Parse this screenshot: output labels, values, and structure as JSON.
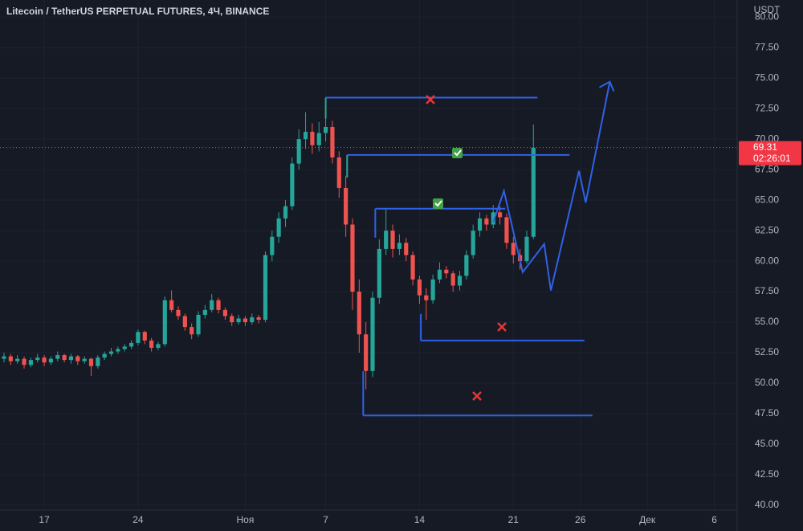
{
  "chart_data": {
    "type": "candlestick",
    "title": "Litecoin / TetherUS PERPETUAL FUTURES, 4Ч, BINANCE",
    "y_axis_label": "USDT",
    "up_color": "#26a69a",
    "down_color": "#ef5350",
    "drawing_color": "#2f62e8",
    "grid": true,
    "xlim": [
      -3.3,
      51.7
    ],
    "ylim": [
      39.6,
      81.4
    ],
    "xticks": [
      {
        "value": 0,
        "label": "17"
      },
      {
        "value": 7,
        "label": "24"
      },
      {
        "value": 15,
        "label": "Ноя"
      },
      {
        "value": 21,
        "label": "7"
      },
      {
        "value": 28,
        "label": "14"
      },
      {
        "value": 35,
        "label": "21"
      },
      {
        "value": 40,
        "label": "26"
      },
      {
        "value": 45,
        "label": "Дек"
      },
      {
        "value": 50,
        "label": "6"
      }
    ],
    "yticks": [
      {
        "value": 40,
        "label": "40.00"
      },
      {
        "value": 42.5,
        "label": "42.50"
      },
      {
        "value": 45,
        "label": "45.00"
      },
      {
        "value": 47.5,
        "label": "47.50"
      },
      {
        "value": 50,
        "label": "50.00"
      },
      {
        "value": 52.5,
        "label": "52.50"
      },
      {
        "value": 55,
        "label": "55.00"
      },
      {
        "value": 57.5,
        "label": "57.50"
      },
      {
        "value": 60,
        "label": "60.00"
      },
      {
        "value": 62.5,
        "label": "62.50"
      },
      {
        "value": 65,
        "label": "65.00"
      },
      {
        "value": 67.5,
        "label": "67.50"
      },
      {
        "value": 70,
        "label": "70.00"
      },
      {
        "value": 72.5,
        "label": "72.50"
      },
      {
        "value": 75,
        "label": "75.00"
      },
      {
        "value": 77.5,
        "label": "77.50"
      },
      {
        "value": 80,
        "label": "80.00"
      }
    ],
    "x": [
      -3,
      -2.5,
      -2,
      -1.5,
      -1,
      -0.5,
      0,
      0.5,
      1,
      1.5,
      2,
      2.5,
      3,
      3.5,
      4,
      4.5,
      5,
      5.5,
      6,
      6.5,
      7,
      7.5,
      8,
      8.5,
      9,
      9.5,
      10,
      10.5,
      11,
      11.5,
      12,
      12.5,
      13,
      13.5,
      14,
      14.5,
      15,
      15.5,
      16,
      16.5,
      17,
      17.5,
      18,
      18.5,
      19,
      19.5,
      20,
      20.5,
      21,
      21.5,
      22,
      22.5,
      23,
      23.5,
      24,
      24.5,
      25,
      25.5,
      26,
      26.5,
      27,
      27.5,
      28,
      28.5,
      29,
      29.5,
      30,
      30.5,
      31,
      31.5,
      32,
      32.5,
      33,
      33.5,
      34,
      34.5,
      35,
      35.5,
      36,
      36.5
    ],
    "ohlc": [
      [
        52.0,
        52.5,
        51.7,
        52.2
      ],
      [
        52.2,
        52.4,
        51.5,
        51.8
      ],
      [
        51.8,
        52.3,
        51.6,
        52.0
      ],
      [
        52.0,
        52.2,
        51.2,
        51.5
      ],
      [
        51.5,
        52.1,
        51.3,
        51.9
      ],
      [
        51.9,
        52.4,
        51.7,
        52.1
      ],
      [
        52.1,
        52.3,
        51.4,
        51.7
      ],
      [
        51.7,
        52.2,
        51.5,
        52.0
      ],
      [
        52.0,
        52.6,
        51.8,
        52.3
      ],
      [
        52.3,
        52.4,
        51.7,
        51.9
      ],
      [
        51.9,
        52.4,
        51.6,
        52.2
      ],
      [
        52.2,
        52.3,
        51.5,
        51.8
      ],
      [
        51.8,
        52.2,
        51.6,
        52.0
      ],
      [
        52.0,
        52.1,
        50.6,
        51.4
      ],
      [
        51.4,
        52.3,
        51.2,
        52.1
      ],
      [
        52.1,
        52.6,
        51.9,
        52.4
      ],
      [
        52.4,
        52.9,
        52.2,
        52.6
      ],
      [
        52.6,
        53.0,
        52.4,
        52.8
      ],
      [
        52.8,
        53.2,
        52.6,
        53.0
      ],
      [
        53.0,
        53.5,
        52.8,
        53.3
      ],
      [
        53.3,
        54.4,
        53.1,
        54.2
      ],
      [
        54.2,
        54.3,
        53.2,
        53.5
      ],
      [
        53.5,
        53.7,
        52.6,
        52.9
      ],
      [
        52.9,
        53.4,
        52.7,
        53.2
      ],
      [
        53.2,
        57.1,
        53.0,
        56.8
      ],
      [
        56.8,
        57.6,
        55.8,
        56.0
      ],
      [
        56.0,
        56.3,
        55.2,
        55.5
      ],
      [
        55.5,
        55.7,
        54.3,
        54.6
      ],
      [
        54.6,
        54.9,
        53.6,
        54.0
      ],
      [
        54.0,
        55.9,
        53.8,
        55.6
      ],
      [
        55.6,
        56.4,
        55.3,
        56.0
      ],
      [
        56.0,
        57.3,
        55.8,
        56.8
      ],
      [
        56.8,
        57.0,
        55.7,
        56.0
      ],
      [
        56.0,
        56.2,
        55.2,
        55.5
      ],
      [
        55.5,
        55.7,
        54.7,
        55.0
      ],
      [
        55.0,
        55.6,
        54.8,
        55.3
      ],
      [
        55.3,
        55.5,
        54.7,
        55.0
      ],
      [
        55.0,
        55.7,
        54.8,
        55.4
      ],
      [
        55.4,
        55.6,
        54.9,
        55.2
      ],
      [
        55.2,
        60.8,
        55.0,
        60.5
      ],
      [
        60.5,
        62.5,
        60.0,
        62.0
      ],
      [
        62.0,
        64.0,
        61.5,
        63.5
      ],
      [
        63.5,
        65.0,
        62.8,
        64.5
      ],
      [
        64.5,
        68.5,
        64.2,
        68.0
      ],
      [
        68.0,
        70.8,
        67.5,
        70.0
      ],
      [
        70.0,
        72.2,
        69.2,
        70.6
      ],
      [
        70.6,
        71.3,
        68.8,
        69.5
      ],
      [
        69.5,
        71.4,
        69.0,
        70.5
      ],
      [
        70.5,
        73.4,
        69.8,
        71.0
      ],
      [
        71.0,
        71.5,
        68.0,
        68.5
      ],
      [
        68.5,
        69.0,
        65.2,
        66.0
      ],
      [
        66.0,
        67.0,
        62.0,
        63.0
      ],
      [
        63.0,
        63.5,
        56.0,
        57.5
      ],
      [
        57.5,
        58.5,
        52.5,
        54.0
      ],
      [
        54.0,
        55.0,
        49.5,
        51.0
      ],
      [
        51.0,
        57.5,
        50.5,
        57.0
      ],
      [
        57.0,
        61.8,
        56.5,
        61.0
      ],
      [
        61.0,
        64.3,
        60.5,
        62.5
      ],
      [
        62.5,
        63.0,
        60.3,
        61.0
      ],
      [
        61.0,
        62.2,
        60.5,
        61.5
      ],
      [
        61.5,
        61.9,
        60.0,
        60.5
      ],
      [
        60.5,
        60.8,
        58.0,
        58.5
      ],
      [
        58.5,
        58.8,
        56.5,
        57.2
      ],
      [
        57.2,
        57.8,
        55.2,
        56.8
      ],
      [
        56.8,
        58.9,
        56.5,
        58.5
      ],
      [
        58.5,
        59.9,
        58.2,
        59.3
      ],
      [
        59.3,
        59.6,
        58.6,
        59.0
      ],
      [
        59.0,
        59.2,
        57.5,
        58.0
      ],
      [
        58.0,
        59.2,
        57.6,
        58.8
      ],
      [
        58.8,
        60.9,
        58.5,
        60.5
      ],
      [
        60.5,
        63.0,
        60.2,
        62.5
      ],
      [
        62.5,
        64.0,
        62.0,
        63.5
      ],
      [
        63.5,
        63.8,
        62.5,
        63.0
      ],
      [
        63.0,
        64.6,
        62.7,
        64.0
      ],
      [
        64.0,
        64.5,
        63.0,
        63.6
      ],
      [
        63.6,
        63.9,
        61.0,
        61.5
      ],
      [
        61.5,
        62.0,
        59.8,
        60.5
      ],
      [
        60.5,
        61.0,
        59.3,
        60.0
      ],
      [
        60.0,
        62.5,
        59.8,
        62.0
      ],
      [
        62.0,
        71.2,
        61.8,
        69.3
      ]
    ],
    "last_price": 69.31,
    "countdown": "02:26:01",
    "levels": [
      {
        "price": 73.4,
        "from": 21.0,
        "to": 36.8
      },
      {
        "price": 68.7,
        "from": 22.6,
        "to": 39.2
      },
      {
        "price": 64.3,
        "from": 24.7,
        "to": 34.4
      },
      {
        "price": 53.5,
        "from": 28.1,
        "to": 40.3
      },
      {
        "price": 47.35,
        "from": 23.8,
        "to": 40.9
      }
    ],
    "projection": {
      "x": [
        33.5,
        34.3,
        35.7,
        37.3,
        37.8,
        39.9,
        40.4,
        42.2
      ],
      "y": [
        63.2,
        65.75,
        59.1,
        61.4,
        57.6,
        67.4,
        64.8,
        74.7
      ]
    }
  }
}
